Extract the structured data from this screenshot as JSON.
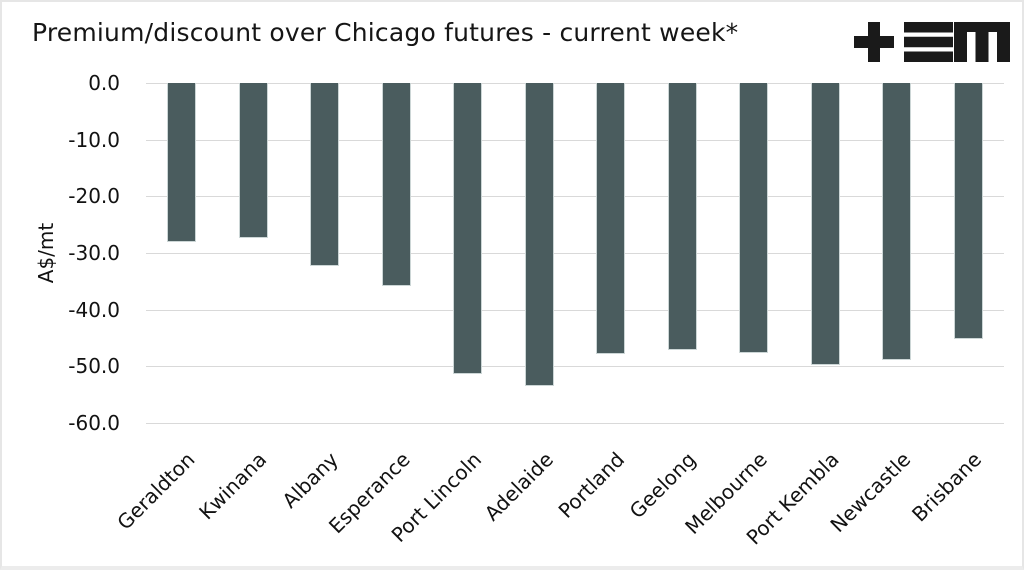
{
  "title": "Premium/discount over Chicago futures - current week*",
  "logo": {
    "name": "TEM logo",
    "color": "#1a1a1a"
  },
  "chart_data": {
    "type": "bar",
    "title": "Premium/discount over Chicago futures - current week*",
    "xlabel": "",
    "ylabel": "A$/mt",
    "categories": [
      "Geraldton",
      "Kwinana",
      "Albany",
      "Esperance",
      "Port Lincoln",
      "Adelaide",
      "Portland",
      "Geelong",
      "Melbourne",
      "Port Kembla",
      "Newcastle",
      "Brisbane"
    ],
    "values": [
      -28.1,
      -27.3,
      -32.3,
      -35.9,
      -51.3,
      -53.4,
      -47.8,
      -47.2,
      -47.6,
      -49.8,
      -48.9,
      -45.1
    ],
    "ylim": [
      -60,
      0
    ],
    "yticks": [
      0,
      -10,
      -20,
      -30,
      -40,
      -50,
      -60
    ],
    "ytick_labels": [
      "0.0",
      "-10.0",
      "-20.0",
      "-30.0",
      "-40.0",
      "-50.0",
      "-60.0"
    ],
    "grid": true,
    "legend_position": "none",
    "bar_color": "#4a5c5e",
    "bar_border_color": "#ccd6d6",
    "gridline_color": "#d9d9d9"
  }
}
